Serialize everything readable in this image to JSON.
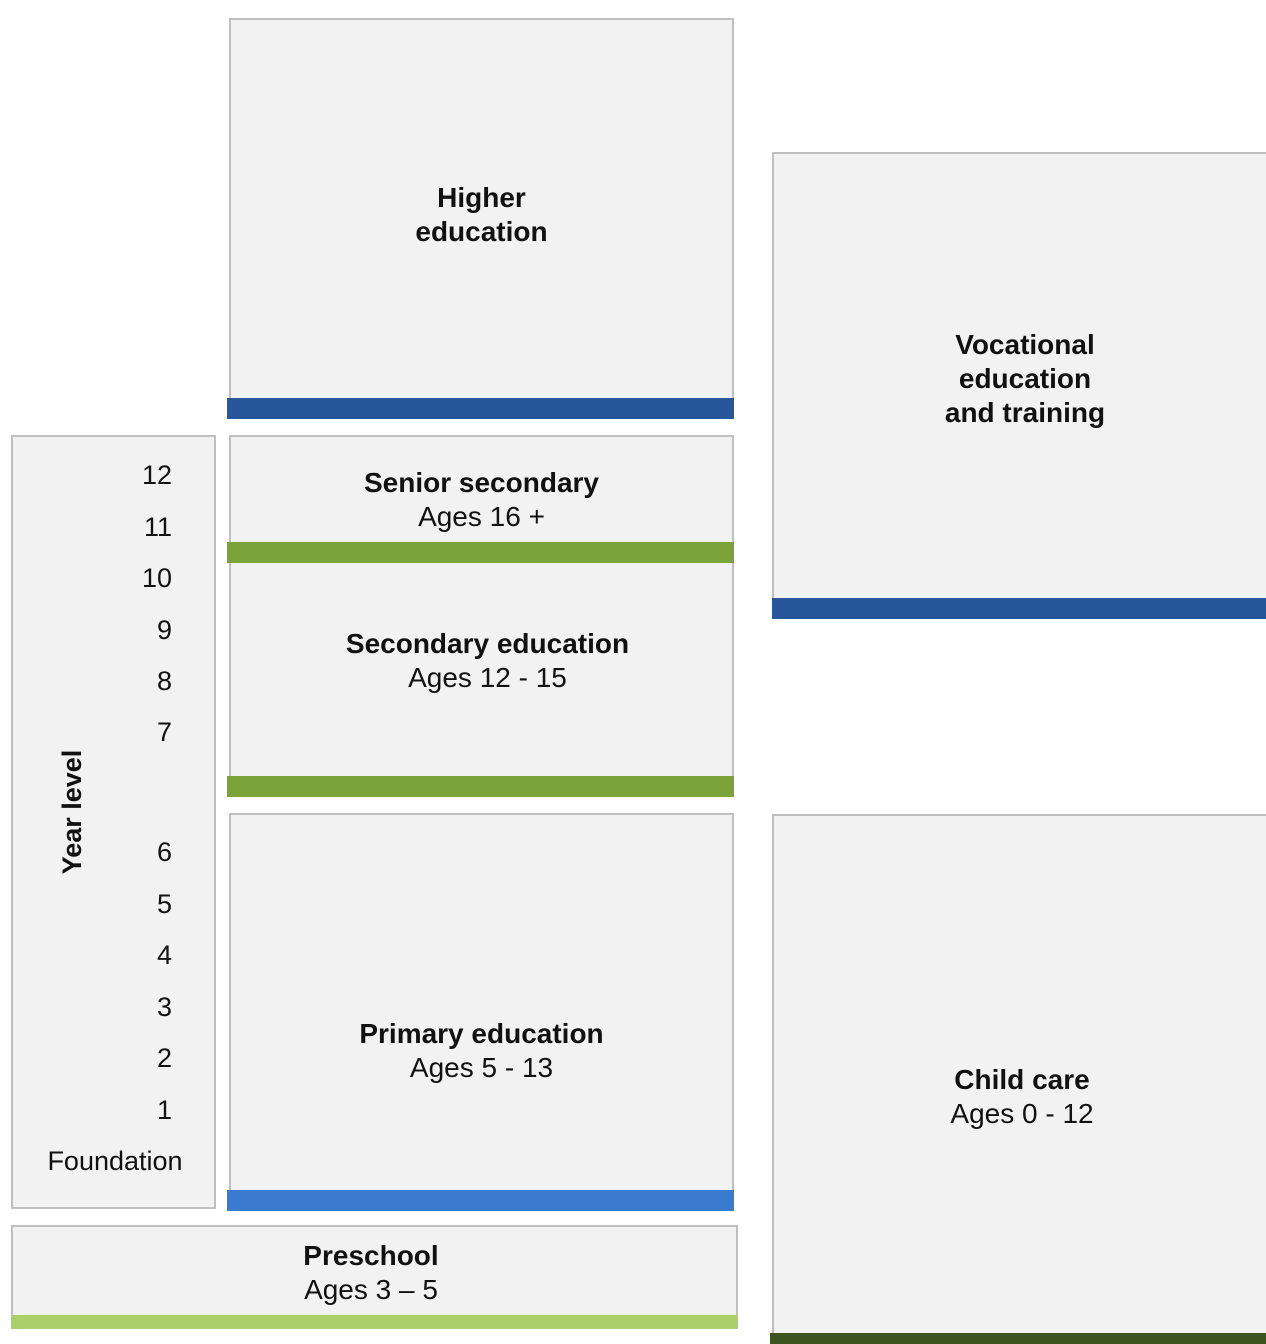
{
  "colors": {
    "box_fill": "#f2f2f2",
    "box_border": "#bfbfbf",
    "dark_blue": "#27579a",
    "mid_blue": "#3a7bd0",
    "green": "#7aa33a",
    "light_green": "#a9d06a",
    "dark_green": "#3e5420"
  },
  "higher_education": {
    "title": "Higher education",
    "line1": "Higher",
    "line2": "education"
  },
  "vet": {
    "line1": "Vocational",
    "line2": "education",
    "line3": "and training"
  },
  "senior_secondary": {
    "title": "Senior secondary",
    "ages": "Ages 16 +"
  },
  "secondary": {
    "title": "Secondary education",
    "ages": "Ages 12 - 15"
  },
  "primary": {
    "title": "Primary education",
    "ages": "Ages 5 - 13"
  },
  "child_care": {
    "title": "Child care",
    "ages": "Ages 0 - 12"
  },
  "preschool": {
    "title": "Preschool",
    "ages": "Ages 3 – 5"
  },
  "year_level": {
    "title": "Year level",
    "levels": [
      "12",
      "11",
      "10",
      "9",
      "8",
      "7",
      "6",
      "5",
      "4",
      "3",
      "2",
      "1",
      "Foundation"
    ]
  }
}
